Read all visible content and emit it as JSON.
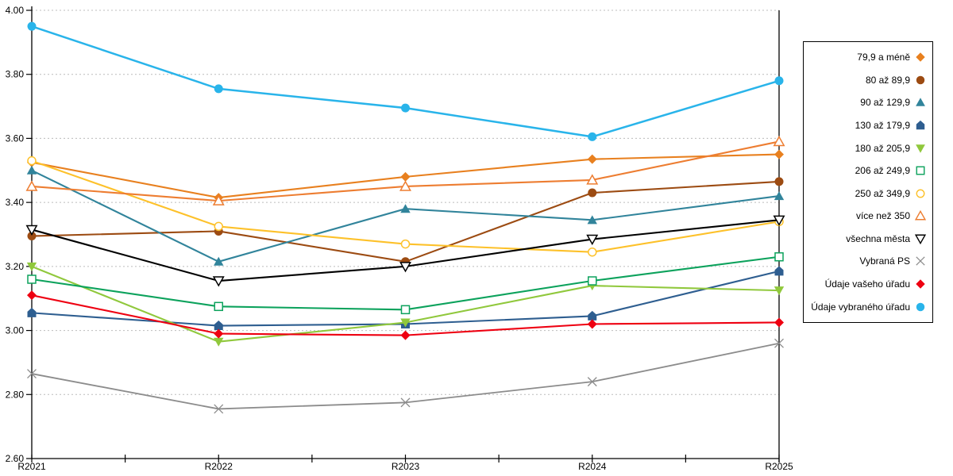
{
  "chart_data": {
    "type": "line",
    "categories": [
      "R2021",
      "R2022",
      "R2023",
      "R2024",
      "R2025"
    ],
    "ylim": [
      2.6,
      4.0
    ],
    "ytick_step": 0.2,
    "ytick_labels": [
      "4.00",
      "3.80",
      "3.60",
      "3.40",
      "3.20",
      "3.00",
      "2.80",
      "2.60"
    ],
    "grid": "horizontal-dashed",
    "grid_color": "#bcbcbc",
    "axis_color": "#000000",
    "legend_position": "right-box",
    "title": "",
    "xlabel": "",
    "ylabel": "",
    "series": [
      {
        "name": "79,9 a méně",
        "color": "#E8801F",
        "marker": "diamond",
        "fill": "filled",
        "values": [
          3.525,
          3.415,
          3.48,
          3.535,
          3.55
        ]
      },
      {
        "name": "80 až 89,9",
        "color": "#9C4B12",
        "marker": "circle",
        "fill": "filled",
        "values": [
          3.295,
          3.31,
          3.215,
          3.43,
          3.465
        ]
      },
      {
        "name": "90 až 129,9",
        "color": "#31849B",
        "marker": "triangle-up",
        "fill": "filled",
        "values": [
          3.5,
          3.215,
          3.38,
          3.345,
          3.42
        ]
      },
      {
        "name": "130 až 179,9",
        "color": "#2E5E90",
        "marker": "pentagon",
        "fill": "filled",
        "values": [
          3.055,
          3.015,
          3.02,
          3.045,
          3.185
        ]
      },
      {
        "name": "180 až 205,9",
        "color": "#90C83C",
        "marker": "triangle-down",
        "fill": "filled",
        "values": [
          3.2,
          2.965,
          3.025,
          3.14,
          3.125
        ]
      },
      {
        "name": "206 až 249,9",
        "color": "#0CA25C",
        "marker": "square",
        "fill": "open",
        "values": [
          3.16,
          3.075,
          3.065,
          3.155,
          3.23
        ]
      },
      {
        "name": "250 až 349,9",
        "color": "#FDC12A",
        "marker": "circle",
        "fill": "open",
        "values": [
          3.53,
          3.325,
          3.27,
          3.245,
          3.34
        ]
      },
      {
        "name": "více než 350",
        "color": "#ED7D31",
        "marker": "triangle-up",
        "fill": "open",
        "values": [
          3.45,
          3.405,
          3.45,
          3.47,
          3.59
        ]
      },
      {
        "name": "všechna města",
        "color": "#000000",
        "marker": "triangle-down",
        "fill": "open",
        "values": [
          3.315,
          3.155,
          3.2,
          3.285,
          3.345
        ]
      },
      {
        "name": "Vybraná PS",
        "color": "#8C8C8C",
        "marker": "x",
        "fill": "open",
        "values": [
          2.865,
          2.755,
          2.775,
          2.84,
          2.96
        ]
      },
      {
        "name": "Údaje vašeho úřadu",
        "color": "#EE0011",
        "marker": "diamond",
        "fill": "filled",
        "values": [
          3.11,
          2.99,
          2.985,
          3.02,
          3.025
        ]
      },
      {
        "name": "Údaje vybraného úřadu",
        "color": "#29B4EA",
        "marker": "circle",
        "fill": "filled",
        "values": [
          3.95,
          3.755,
          3.695,
          3.605,
          3.78
        ]
      }
    ]
  }
}
